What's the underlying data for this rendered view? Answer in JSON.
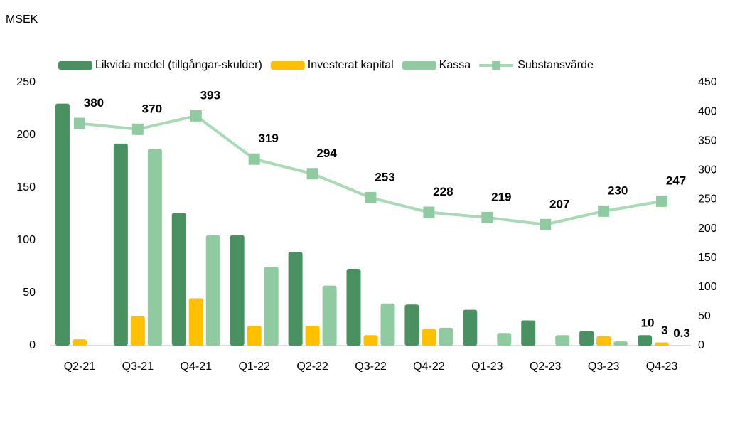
{
  "chart_data": {
    "type": "bar",
    "unit": "MSEK",
    "categories": [
      "Q2-21",
      "Q3-21",
      "Q4-21",
      "Q1-22",
      "Q2-22",
      "Q3-22",
      "Q4-22",
      "Q1-23",
      "Q2-23",
      "Q3-23",
      "Q4-23"
    ],
    "series": [
      {
        "name": "Likvida medel (tillgångar-skulder)",
        "color": "#4a9162",
        "values": [
          230,
          192,
          126,
          105,
          89,
          73,
          39,
          34,
          24,
          14,
          10
        ],
        "value_labels": [
          null,
          null,
          null,
          null,
          null,
          null,
          null,
          null,
          null,
          null,
          "10"
        ]
      },
      {
        "name": "Investerat kapital",
        "color": "#ffc000",
        "values": [
          6,
          28,
          45,
          19,
          19,
          10,
          16,
          0,
          0,
          9,
          3
        ],
        "value_labels": [
          null,
          null,
          null,
          null,
          null,
          null,
          null,
          null,
          null,
          null,
          "3"
        ]
      },
      {
        "name": "Kassa",
        "color": "#8fcaa0",
        "values": [
          0,
          187,
          105,
          75,
          57,
          40,
          17,
          12,
          10,
          4,
          0.3
        ],
        "value_labels": [
          null,
          null,
          null,
          null,
          null,
          null,
          null,
          null,
          null,
          null,
          "0.3"
        ]
      },
      {
        "name": "Substansvärde",
        "type": "line",
        "axis": "y2",
        "color": "#a9dab6",
        "marker_color": "#8fcaa0",
        "values": [
          380,
          370,
          393,
          319,
          294,
          253,
          228,
          219,
          207,
          230,
          247
        ]
      }
    ],
    "ylim": [
      0,
      250
    ],
    "yticks": [
      0,
      50,
      100,
      150,
      200,
      250
    ],
    "y2lim": [
      0,
      450
    ],
    "y2ticks": [
      0,
      50,
      100,
      150,
      200,
      250,
      300,
      350,
      400,
      450
    ],
    "legend": "top"
  }
}
